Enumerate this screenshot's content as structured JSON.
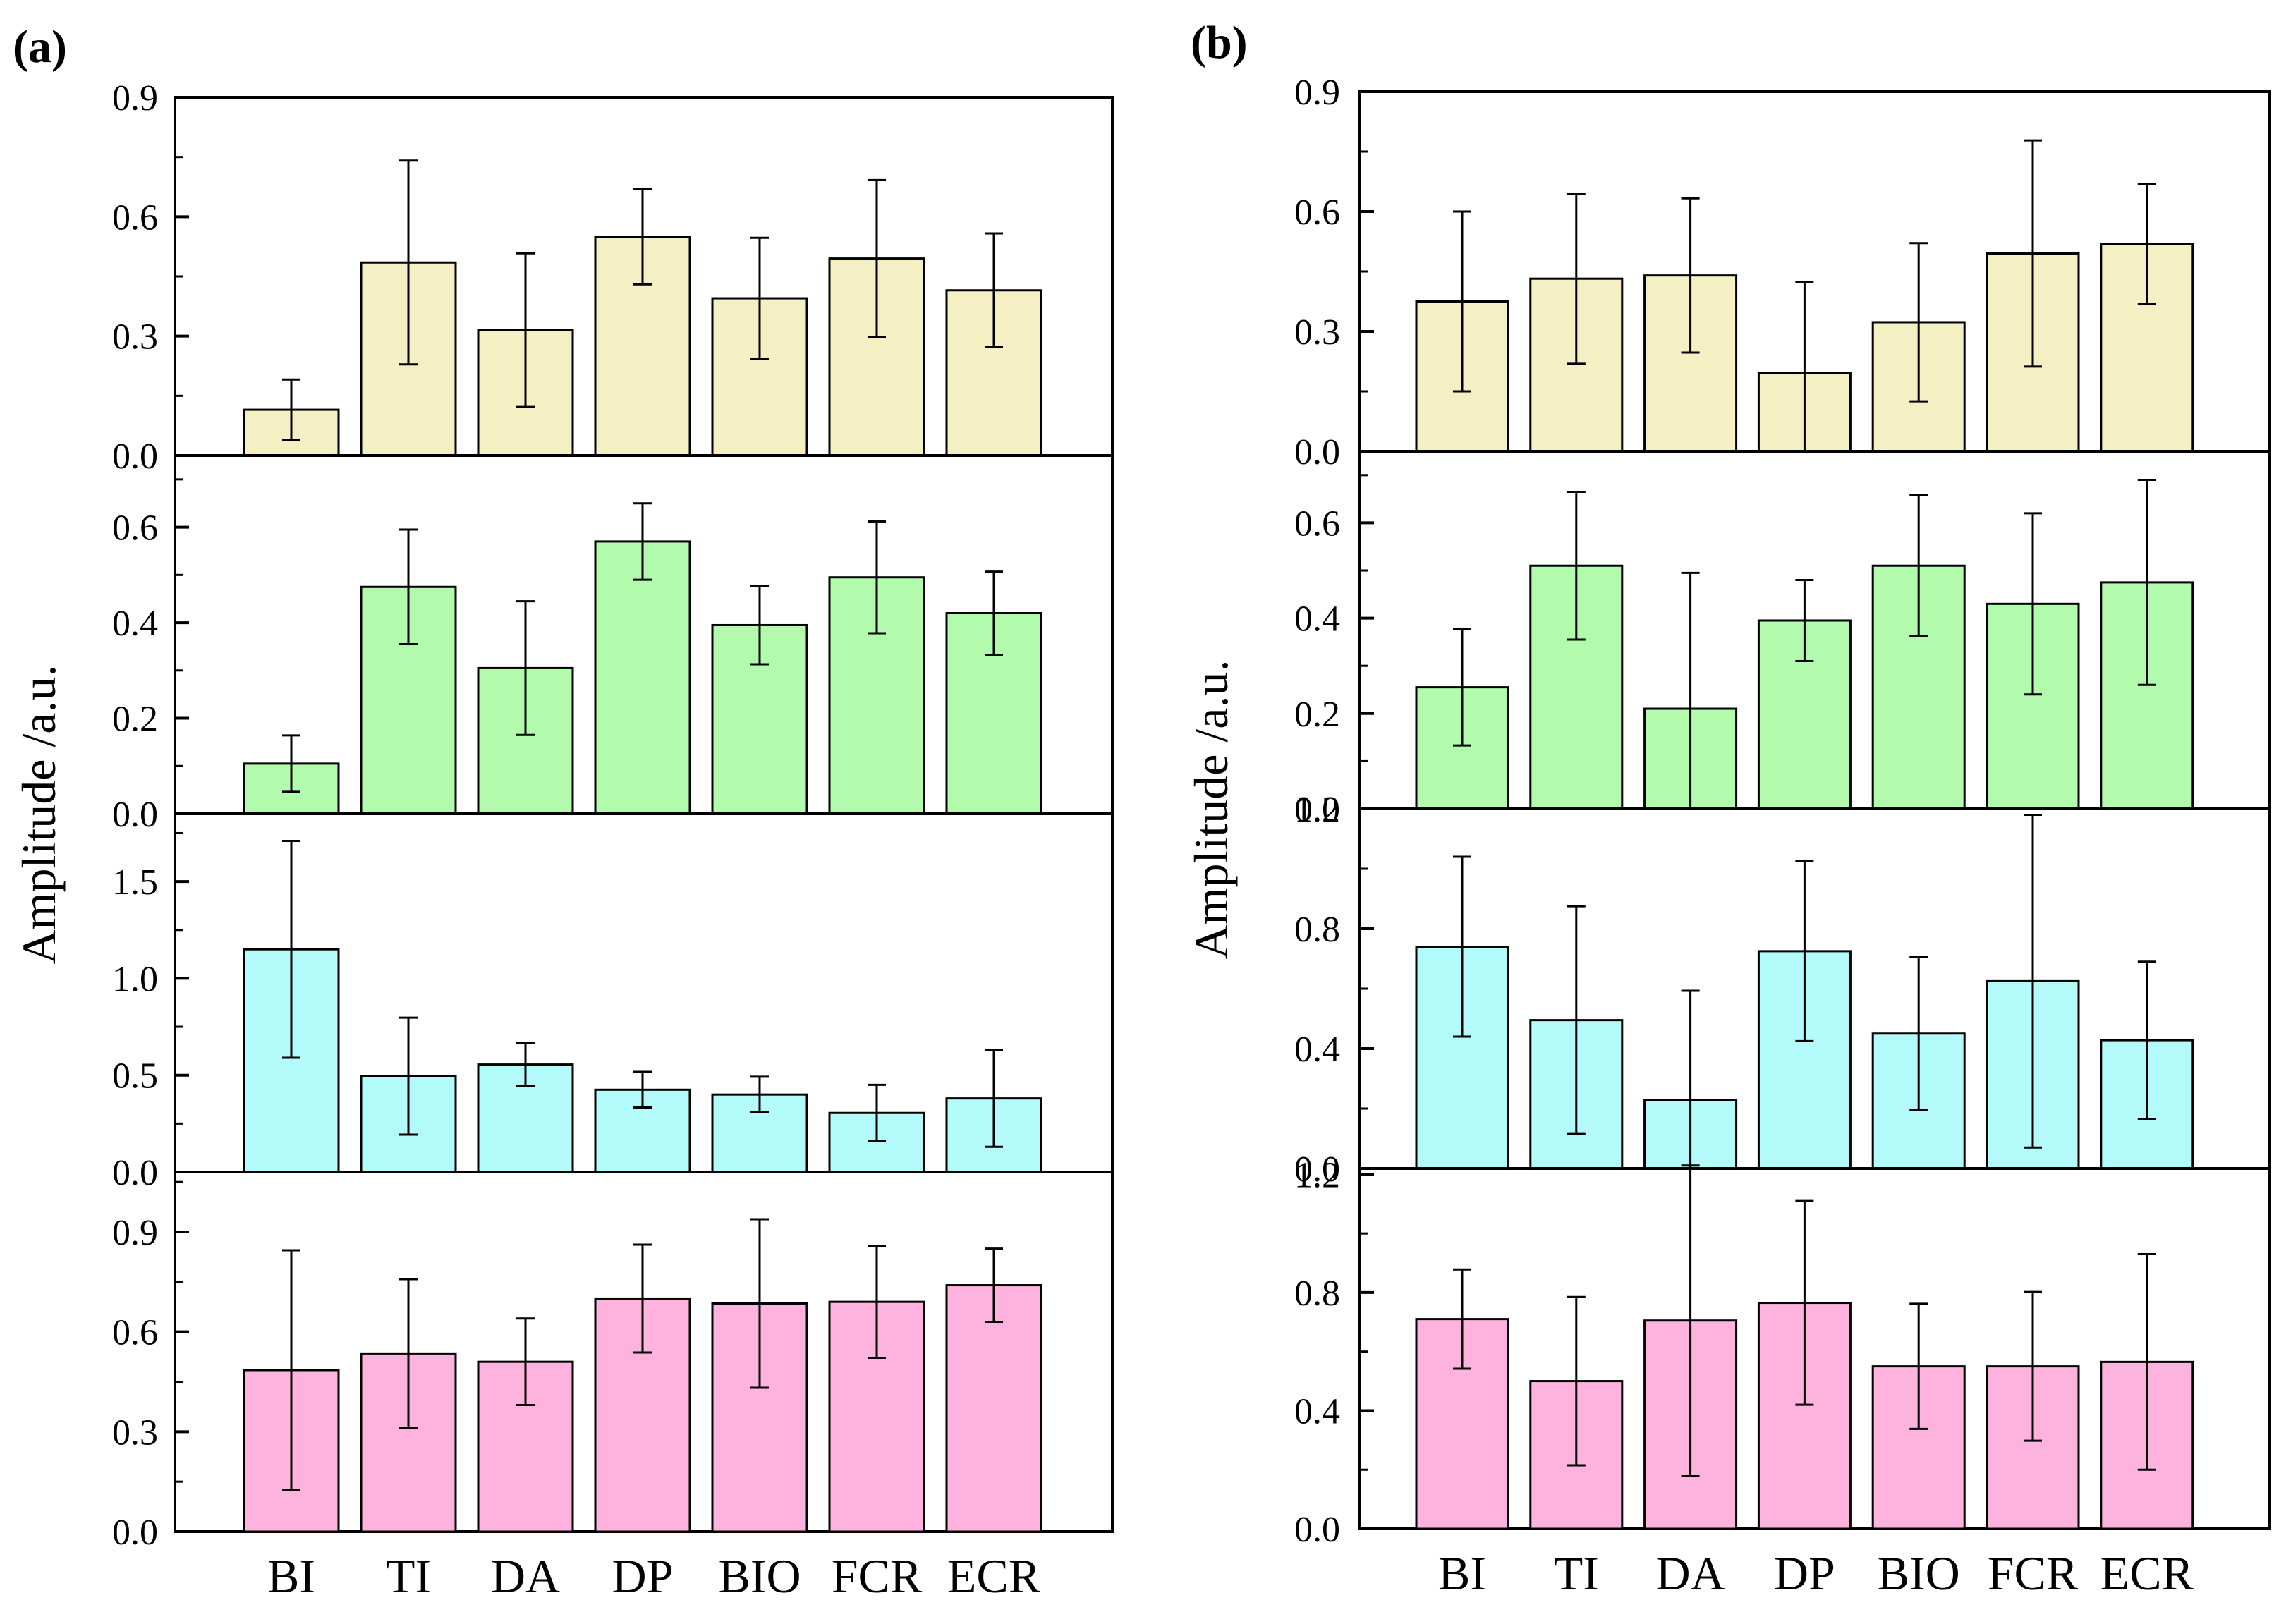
{
  "categories": [
    "BI",
    "TI",
    "DA",
    "DP",
    "BIO",
    "FCR",
    "ECR"
  ],
  "colors": {
    "yellow": "#f5f0c4",
    "green": "#b2fbac",
    "cyan": "#b3fbfb",
    "pink": "#feb3de",
    "axis": "#000000"
  },
  "chart_data": [
    {
      "panel_label": "(a)",
      "ylabel": "Amplitude /a.u.",
      "type": "bar",
      "subplots": [
        {
          "color": "yellow",
          "ylim": [
            0,
            0.9
          ],
          "ticks": [
            0.0,
            0.3,
            0.6,
            0.9
          ],
          "tick_labels": [
            "0.0",
            "0.3",
            "0.6",
            "0.9"
          ],
          "values": [
            0.115,
            0.485,
            0.315,
            0.55,
            0.395,
            0.495,
            0.415
          ],
          "errors": [
            0.076,
            0.256,
            0.193,
            0.12,
            0.152,
            0.197,
            0.143
          ]
        },
        {
          "color": "green",
          "ylim": [
            0,
            0.75
          ],
          "ticks": [
            0.0,
            0.2,
            0.4,
            0.6
          ],
          "tick_labels": [
            "0.0",
            "0.2",
            "0.4",
            "0.6"
          ],
          "values": [
            0.105,
            0.475,
            0.305,
            0.57,
            0.395,
            0.495,
            0.42
          ],
          "errors": [
            0.059,
            0.12,
            0.14,
            0.08,
            0.082,
            0.117,
            0.087
          ]
        },
        {
          "color": "cyan",
          "ylim": [
            0,
            1.85
          ],
          "ticks": [
            0.0,
            0.5,
            1.0,
            1.5
          ],
          "tick_labels": [
            "0.0",
            "0.5",
            "1.0",
            "1.5"
          ],
          "values": [
            1.15,
            0.495,
            0.555,
            0.425,
            0.4,
            0.305,
            0.38
          ],
          "errors": [
            0.56,
            0.302,
            0.11,
            0.092,
            0.092,
            0.145,
            0.25
          ]
        },
        {
          "color": "pink",
          "ylim": [
            0,
            1.08
          ],
          "ticks": [
            0.0,
            0.3,
            0.6,
            0.9
          ],
          "tick_labels": [
            "0.0",
            "0.3",
            "0.6",
            "0.9"
          ],
          "values": [
            0.485,
            0.535,
            0.51,
            0.7,
            0.685,
            0.69,
            0.74
          ],
          "errors": [
            0.36,
            0.223,
            0.13,
            0.162,
            0.253,
            0.168,
            0.11
          ]
        }
      ]
    },
    {
      "panel_label": "(b)",
      "ylabel": "Amplitude /a.u.",
      "type": "bar",
      "subplots": [
        {
          "color": "yellow",
          "ylim": [
            0,
            0.9
          ],
          "ticks": [
            0.0,
            0.3,
            0.6,
            0.9
          ],
          "tick_labels": [
            "0.0",
            "0.3",
            "0.6",
            "0.9"
          ],
          "values": [
            0.375,
            0.432,
            0.44,
            0.195,
            0.323,
            0.495,
            0.518
          ],
          "errors": [
            0.225,
            0.213,
            0.193,
            0.228,
            0.198,
            0.283,
            0.15
          ]
        },
        {
          "color": "green",
          "ylim": [
            0,
            0.75
          ],
          "ticks": [
            0.0,
            0.2,
            0.4,
            0.6
          ],
          "tick_labels": [
            "0.0",
            "0.2",
            "0.4",
            "0.6"
          ],
          "values": [
            0.255,
            0.51,
            0.21,
            0.395,
            0.51,
            0.43,
            0.475
          ],
          "errors": [
            0.122,
            0.155,
            0.285,
            0.085,
            0.148,
            0.19,
            0.215
          ]
        },
        {
          "color": "cyan",
          "ylim": [
            0,
            1.2
          ],
          "ticks": [
            0.0,
            0.4,
            0.8,
            1.2
          ],
          "tick_labels": [
            "0.0",
            "0.4",
            "0.8",
            "1.2"
          ],
          "values": [
            0.74,
            0.495,
            0.228,
            0.725,
            0.45,
            0.625,
            0.428
          ],
          "errors": [
            0.3,
            0.38,
            0.365,
            0.3,
            0.255,
            0.555,
            0.262
          ]
        },
        {
          "color": "pink",
          "ylim": [
            0,
            1.22
          ],
          "ticks": [
            0.0,
            0.4,
            0.8,
            1.2
          ],
          "tick_labels": [
            "0.0",
            "0.4",
            "0.8",
            "1.2"
          ],
          "values": [
            0.71,
            0.5,
            0.705,
            0.765,
            0.55,
            0.55,
            0.565
          ],
          "errors": [
            0.168,
            0.285,
            0.525,
            0.345,
            0.212,
            0.252,
            0.365
          ]
        }
      ]
    }
  ]
}
